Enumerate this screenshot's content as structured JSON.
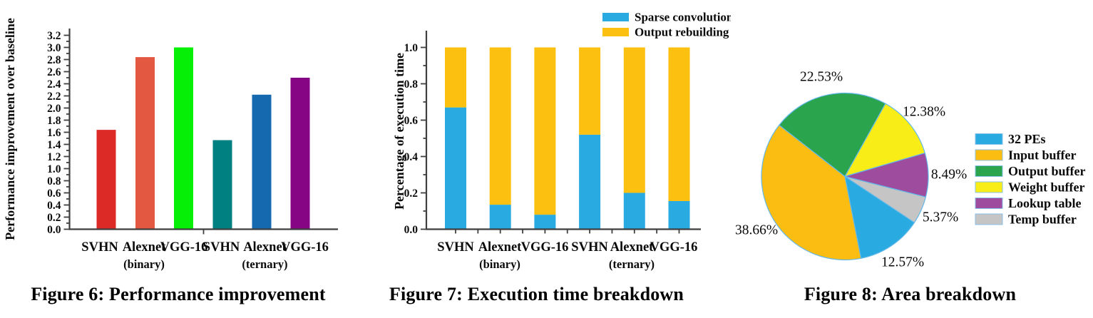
{
  "page": {
    "background": "#ffffff"
  },
  "chart_data": [
    {
      "id": "fig6",
      "type": "bar",
      "caption": "Figure 6: Performance improvement",
      "title": "",
      "xlabel": "",
      "ylabel": "Performance improvement over baseline",
      "ylim": [
        0,
        3.2
      ],
      "ytick_major": 0.2,
      "ytick_minor": 0.1,
      "grid": false,
      "axis_color": "#3f3f3f",
      "text_color": "#0a0a0a",
      "categories": [
        "SVHN",
        "Alexnet",
        "VGG-16",
        "SVHN",
        "Alexnet",
        "VGG-16"
      ],
      "group_labels": [
        {
          "text": "(binary)",
          "under_category_index": 1
        },
        {
          "text": "(ternary)",
          "under_category_index": 4
        }
      ],
      "values": [
        1.64,
        2.84,
        3.0,
        1.47,
        2.22,
        2.5
      ],
      "bar_colors": [
        "#dc2b27",
        "#e25840",
        "#06ef06",
        "#008080",
        "#1569af",
        "#850585"
      ]
    },
    {
      "id": "fig7",
      "type": "stacked-bar",
      "caption": "Figure 7: Execution time breakdown",
      "title": "",
      "xlabel": "",
      "ylabel": "Percentage of execution time",
      "ylim": [
        0,
        1.0
      ],
      "ytick_major": 0.2,
      "ytick_minor": 0.1,
      "grid": false,
      "axis_color": "#3f3f3f",
      "text_color": "#0a0a0a",
      "legend_position": "top-right",
      "categories": [
        "SVHN",
        "Alexnet",
        "VGG-16",
        "SVHN",
        "Alexnet",
        "VGG-16"
      ],
      "group_labels": [
        {
          "text": "(binary)",
          "under_category_index": 1
        },
        {
          "text": "(ternary)",
          "under_category_index": 4
        }
      ],
      "series": [
        {
          "name": "Sparse convolution",
          "color": "#29abe2",
          "values": [
            0.67,
            0.135,
            0.08,
            0.52,
            0.2,
            0.155
          ]
        },
        {
          "name": "Output rebuilding",
          "color": "#fcc011",
          "values": [
            0.33,
            0.865,
            0.92,
            0.48,
            0.8,
            0.845
          ]
        }
      ]
    },
    {
      "id": "fig8",
      "type": "pie",
      "caption": "Figure 8: Area breakdown",
      "title": "",
      "grid": false,
      "text_color": "#0a0a0a",
      "start_angle_clockwise_from_north_deg": -52,
      "slice_border_color": "#62b8ea",
      "legend_border_color": "#8ac1e8",
      "legend_position": "right",
      "slices": [
        {
          "label": "Output buffer",
          "value": 22.53,
          "pct_text": "22.53%",
          "color": "#2aa54e"
        },
        {
          "label": "Weight buffer",
          "value": 12.38,
          "pct_text": "12.38%",
          "color": "#f8ed16"
        },
        {
          "label": "Lookup table",
          "value": 8.49,
          "pct_text": "8.49%",
          "color": "#9e4c9e"
        },
        {
          "label": "Temp buffer",
          "value": 5.37,
          "pct_text": "5.37%",
          "color": "#c5c5c5"
        },
        {
          "label": "32 PEs",
          "value": 12.57,
          "pct_text": "12.57%",
          "color": "#29abe2"
        },
        {
          "label": "Input buffer",
          "value": 38.66,
          "pct_text": "38.66%",
          "color": "#fcbd12"
        }
      ],
      "legend": [
        "32 PEs",
        "Input buffer",
        "Output buffer",
        "Weight buffer",
        "Lookup table",
        "Temp buffer"
      ]
    }
  ]
}
